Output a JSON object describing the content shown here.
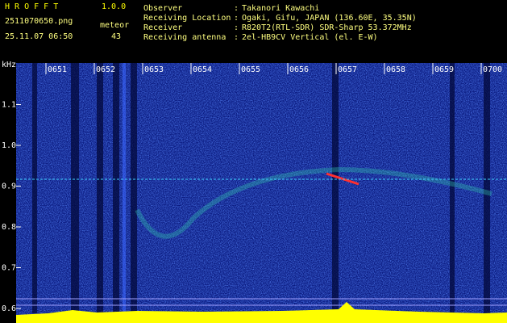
{
  "header": {
    "app": "H R O F F T",
    "version": "1.0.0",
    "file": "2511070650.png",
    "timestamp": "25.11.07 06:50",
    "meteor_label": "meteor",
    "meteor_count": "43",
    "info": [
      {
        "label": "Observer",
        "value": "Takanori Kawachi"
      },
      {
        "label": "Receiving Location",
        "value": "Ogaki, Gifu, JAPAN (136.60E, 35.35N)"
      },
      {
        "label": "Receiver",
        "value": "R820T2(RTL-SDR) SDR-Sharp 53.372MHz"
      },
      {
        "label": "Receiving antenna",
        "value": "2el-HB9CV Vertical (el. E-W)"
      }
    ]
  },
  "axes": {
    "y_unit": "kHz",
    "yticks": [
      {
        "value": 1.1,
        "label": "1.1"
      },
      {
        "value": 1,
        "label": "1.0"
      },
      {
        "value": 0.9,
        "label": "0.9"
      },
      {
        "value": 0.8,
        "label": "0.8"
      },
      {
        "value": 0.7,
        "label": "0.7"
      },
      {
        "value": 0.6,
        "label": "0.6"
      }
    ],
    "xticks": [
      {
        "value": 51,
        "label": "0651"
      },
      {
        "value": 52,
        "label": "0652"
      },
      {
        "value": 53,
        "label": "0653"
      },
      {
        "value": 54,
        "label": "0654"
      },
      {
        "value": 55,
        "label": "0655"
      },
      {
        "value": 56,
        "label": "0656"
      },
      {
        "value": 57,
        "label": "0657"
      },
      {
        "value": 58,
        "label": "0658"
      },
      {
        "value": 59,
        "label": "0659"
      },
      {
        "value": 60,
        "label": "0700"
      }
    ]
  }
}
